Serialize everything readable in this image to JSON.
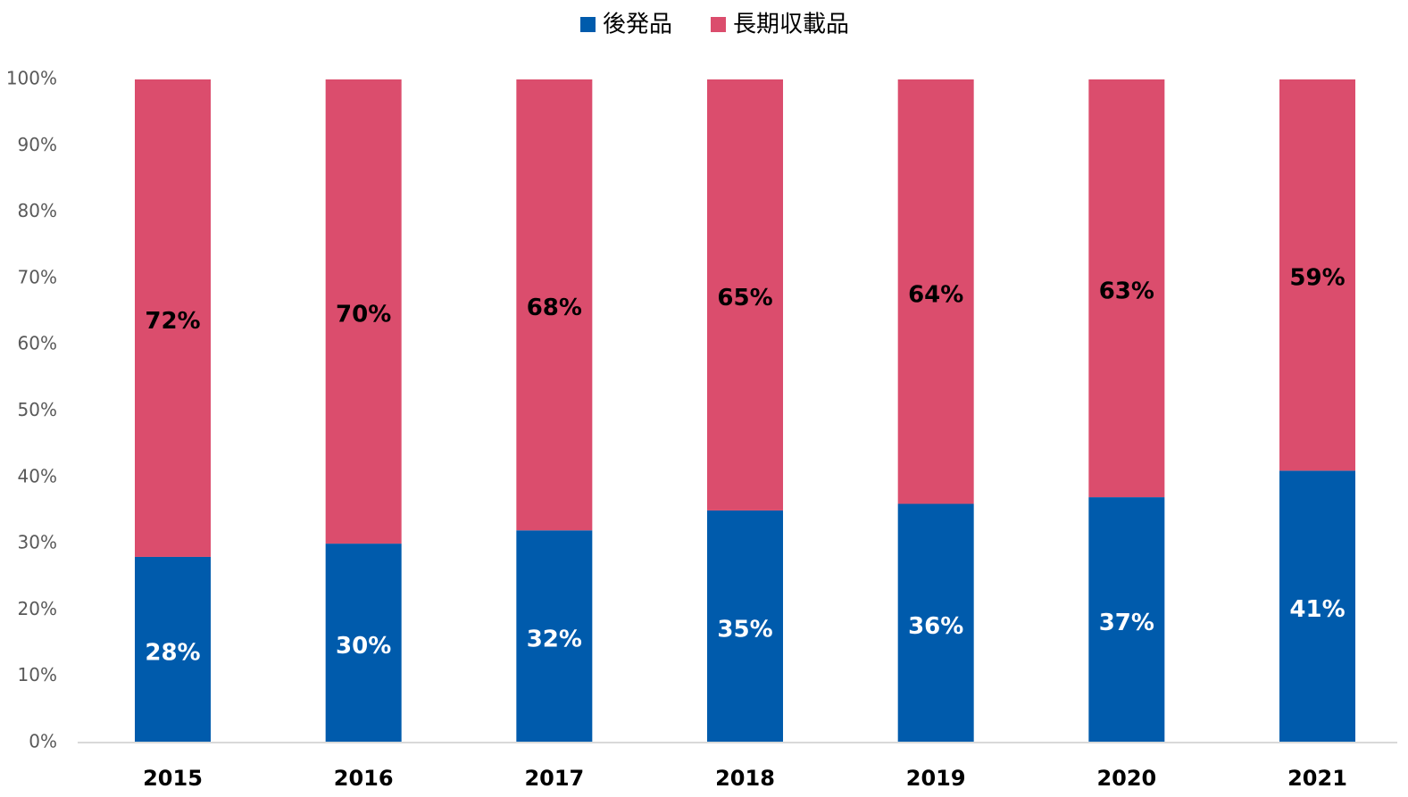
{
  "chart_data": {
    "type": "stacked_bar",
    "categories": [
      "2015",
      "2016",
      "2017",
      "2018",
      "2019",
      "2020",
      "2021"
    ],
    "series": [
      {
        "name": "後発品",
        "color": "#005bac",
        "values": [
          28,
          30,
          32,
          35,
          36,
          37,
          41
        ],
        "value_labels": [
          "28%",
          "30%",
          "32%",
          "35%",
          "36%",
          "37%",
          "41%"
        ],
        "label_color": "#ffffff"
      },
      {
        "name": "長期収載品",
        "color": "#db4d6d",
        "values": [
          72,
          70,
          68,
          65,
          64,
          63,
          59
        ],
        "value_labels": [
          "72%",
          "70%",
          "68%",
          "65%",
          "64%",
          "63%",
          "59%"
        ],
        "label_color": "#000000"
      }
    ],
    "ylim": [
      0,
      100
    ],
    "yticks": [
      {
        "value": 0,
        "label": "0%"
      },
      {
        "value": 10,
        "label": "10%"
      },
      {
        "value": 20,
        "label": "20%"
      },
      {
        "value": 30,
        "label": "30%"
      },
      {
        "value": 40,
        "label": "40%"
      },
      {
        "value": 50,
        "label": "50%"
      },
      {
        "value": 60,
        "label": "60%"
      },
      {
        "value": 70,
        "label": "70%"
      },
      {
        "value": 80,
        "label": "80%"
      },
      {
        "value": 90,
        "label": "90%"
      },
      {
        "value": 100,
        "label": "100%"
      }
    ],
    "grid": false,
    "legend": "top"
  }
}
